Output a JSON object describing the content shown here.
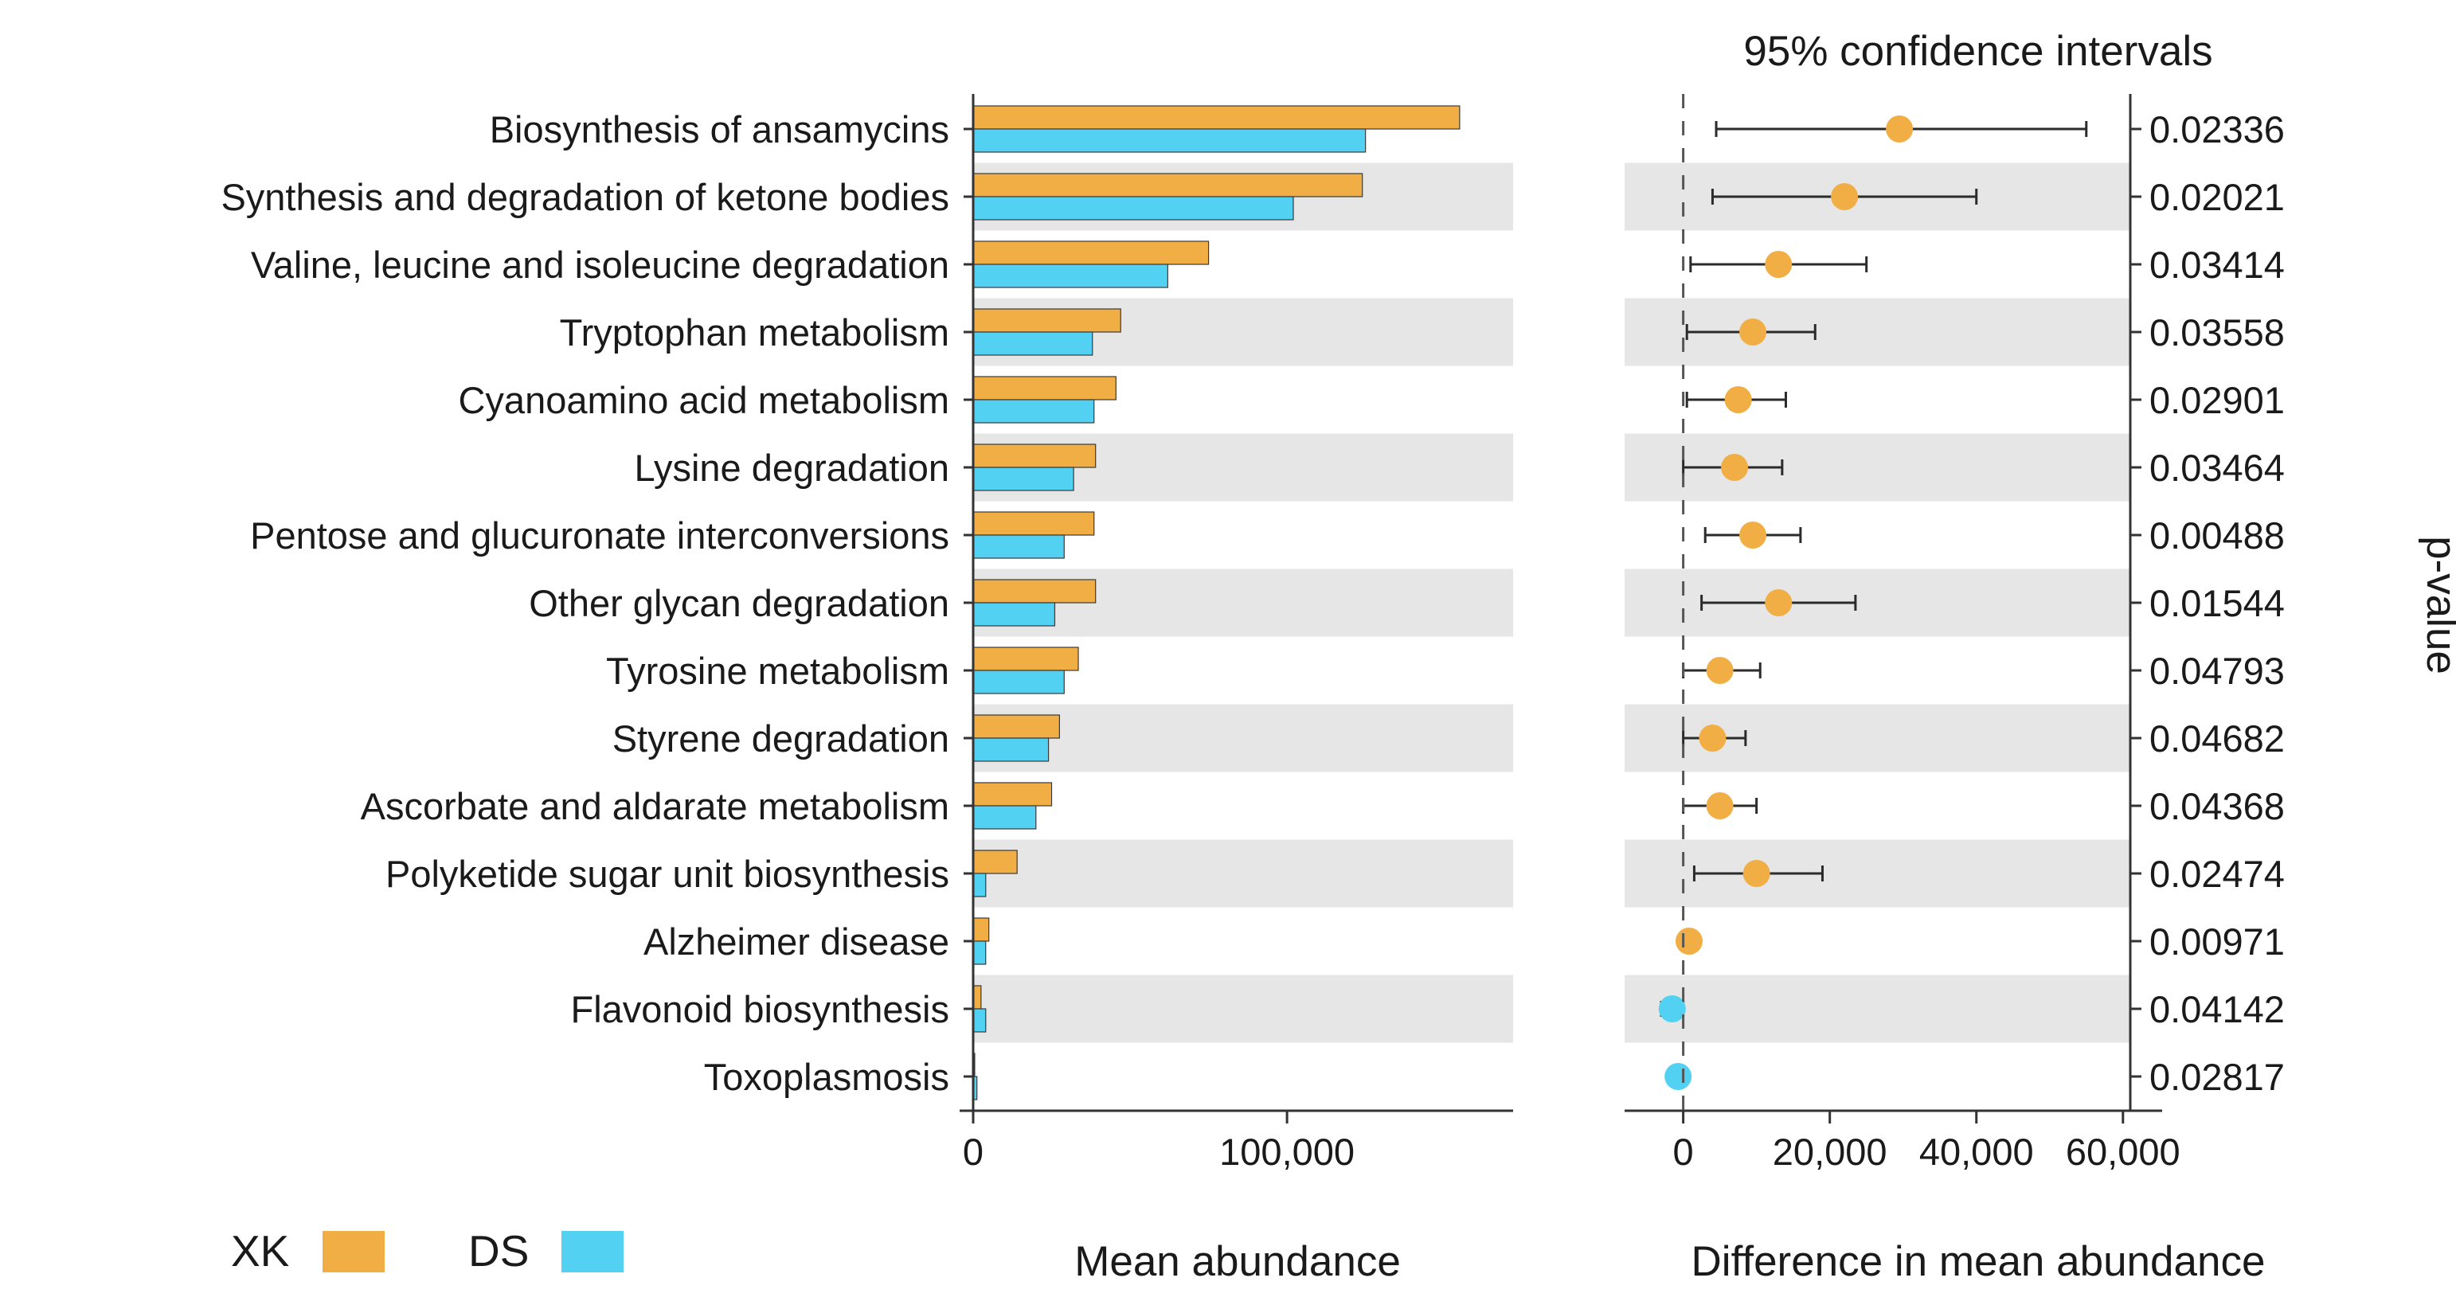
{
  "chart_data": {
    "type": "bar",
    "title": "95% confidence intervals",
    "categories": [
      "Biosynthesis of ansamycins",
      "Synthesis and degradation of ketone bodies",
      "Valine, leucine and isoleucine degradation",
      "Tryptophan metabolism",
      "Cyanoamino acid metabolism",
      "Lysine degradation",
      "Pentose and glucuronate interconversions",
      "Other glycan degradation",
      "Tyrosine metabolism",
      "Styrene degradation",
      "Ascorbate and aldarate metabolism",
      "Polyketide sugar unit biosynthesis",
      "Alzheimer disease",
      "Flavonoid biosynthesis",
      "Toxoplasmosis"
    ],
    "series": [
      {
        "name": "XK",
        "color": "#F0AE44",
        "values": [
          155000,
          124000,
          75000,
          47000,
          45500,
          39000,
          38500,
          39000,
          33500,
          27500,
          25000,
          14000,
          5000,
          2500,
          500
        ]
      },
      {
        "name": "DS",
        "color": "#52D1F3",
        "values": [
          125000,
          102000,
          62000,
          38000,
          38500,
          32000,
          29000,
          26000,
          29000,
          24000,
          20000,
          4000,
          4000,
          4000,
          1200
        ]
      }
    ],
    "xlabel": "Mean abundance",
    "xlim": [
      0,
      170000
    ],
    "xticks": [
      0,
      100000
    ],
    "xtick_labels": [
      "0",
      "100,000"
    ],
    "ci_panel": {
      "xlabel": "Difference in mean abundance",
      "xlim": [
        -8000,
        61000
      ],
      "xticks": [
        0,
        20000,
        40000,
        60000
      ],
      "xtick_labels": [
        "0",
        "20,000",
        "40,000",
        "60,000"
      ],
      "points": [
        {
          "diff": 29500,
          "low": 4500,
          "high": 55000,
          "group": "XK"
        },
        {
          "diff": 22000,
          "low": 4000,
          "high": 40000,
          "group": "XK"
        },
        {
          "diff": 13000,
          "low": 1000,
          "high": 25000,
          "group": "XK"
        },
        {
          "diff": 9500,
          "low": 500,
          "high": 18000,
          "group": "XK"
        },
        {
          "diff": 7500,
          "low": 500,
          "high": 14000,
          "group": "XK"
        },
        {
          "diff": 7000,
          "low": 0,
          "high": 13500,
          "group": "XK"
        },
        {
          "diff": 9500,
          "low": 3000,
          "high": 16000,
          "group": "XK"
        },
        {
          "diff": 13000,
          "low": 2500,
          "high": 23500,
          "group": "XK"
        },
        {
          "diff": 5000,
          "low": 0,
          "high": 10500,
          "group": "XK"
        },
        {
          "diff": 4000,
          "low": 0,
          "high": 8500,
          "group": "XK"
        },
        {
          "diff": 5000,
          "low": 0,
          "high": 10000,
          "group": "XK"
        },
        {
          "diff": 10000,
          "low": 1500,
          "high": 19000,
          "group": "XK"
        },
        {
          "diff": 800,
          "low": -400,
          "high": 2000,
          "group": "XK"
        },
        {
          "diff": -1500,
          "low": -3000,
          "high": 0,
          "group": "DS"
        },
        {
          "diff": -700,
          "low": -1500,
          "high": 100,
          "group": "DS"
        }
      ]
    },
    "pvalue_label": "p-value",
    "pvalues": [
      "0.02336",
      "0.02021",
      "0.03414",
      "0.03558",
      "0.02901",
      "0.03464",
      "0.00488",
      "0.01544",
      "0.04793",
      "0.04682",
      "0.04368",
      "0.02474",
      "0.00971",
      "0.04142",
      "0.02817"
    ],
    "legend": [
      {
        "label": "XK",
        "color": "#F0AE44"
      },
      {
        "label": "DS",
        "color": "#52D1F3"
      }
    ],
    "stripe_color": "#E6E6E6"
  }
}
